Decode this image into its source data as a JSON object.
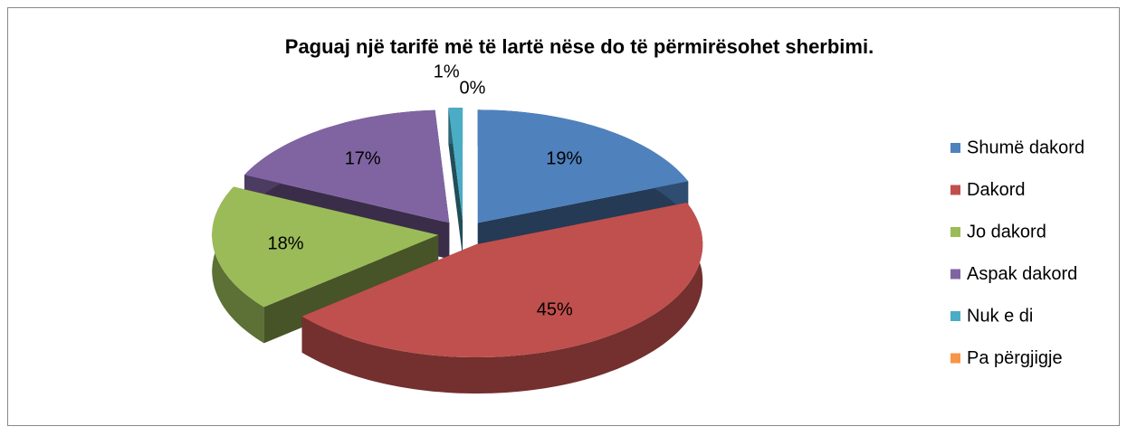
{
  "chart_data": {
    "type": "pie3d",
    "title": "Paguaj një tarifë më të lartë nëse do të përmirësohet sherbimi.",
    "categories": [
      "Shumë dakord",
      "Dakord",
      "Jo dakord",
      "Aspak dakord",
      "Nuk e di",
      "Pa përgjigje"
    ],
    "values": [
      19,
      45,
      18,
      17,
      1,
      0
    ],
    "value_labels": [
      "19%",
      "45%",
      "18%",
      "17%",
      "1%",
      "0%"
    ],
    "colors": [
      "#4f81bd",
      "#c0504d",
      "#9bbb59",
      "#8064a2",
      "#4bacc6",
      "#f79646"
    ],
    "legend": "right"
  }
}
